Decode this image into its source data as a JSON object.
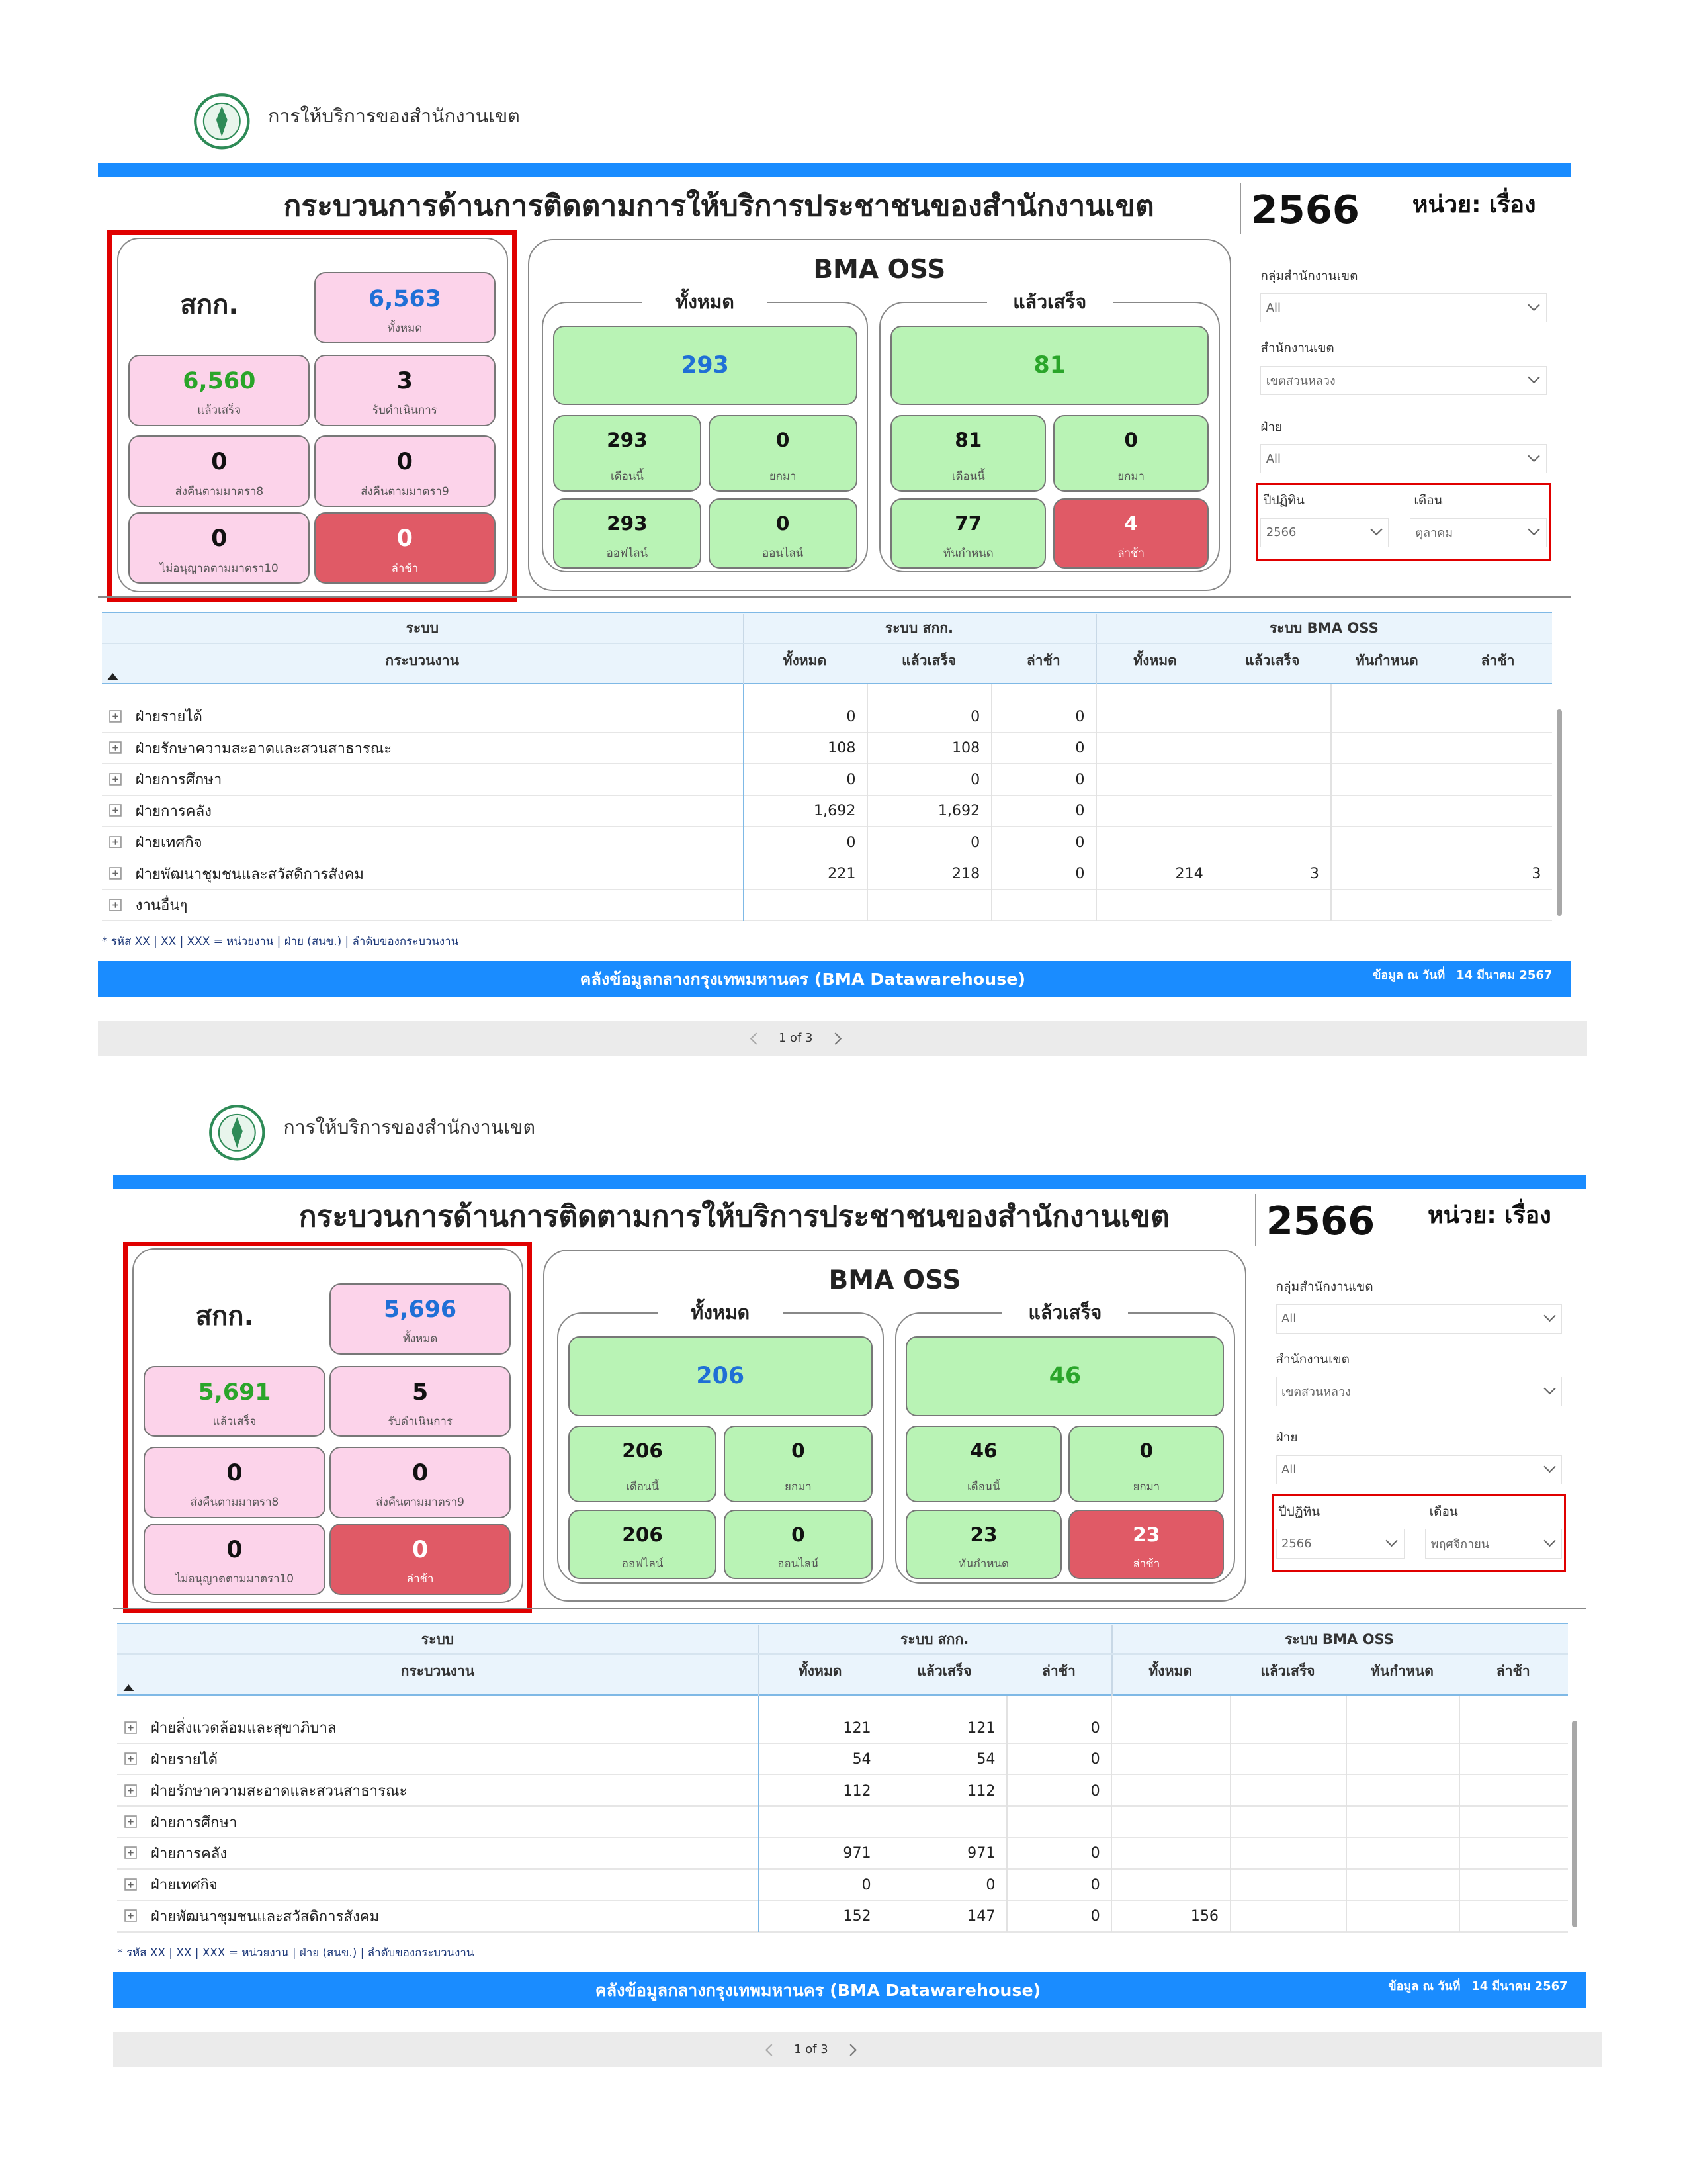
{
  "pages": [
    {
      "header": {
        "title": "การให้บริการของสำนักงานเขต"
      },
      "report": {
        "title": "กระบวนการด้านการติดตามการให้บริการประชาชนของสำนักงานเขต",
        "year": "2566",
        "unit": "หน่วย: เรื่อง"
      },
      "sakk": {
        "title": "สกก.",
        "cards": [
          {
            "value": "6,563",
            "label": "ทั้งหมด"
          },
          {
            "value": "6,560",
            "label": "แล้วเสร็จ"
          },
          {
            "value": "3",
            "label": "รับดำเนินการ"
          },
          {
            "value": "0",
            "label": "ส่งคืนตามมาตรา8"
          },
          {
            "value": "0",
            "label": "ส่งคืนตามมาตรา9"
          },
          {
            "value": "0",
            "label": "ไม่อนุญาตตามมาตรา10"
          },
          {
            "value": "0",
            "label": "ล่าช้า"
          }
        ]
      },
      "oss": {
        "title": "BMA OSS",
        "groups": [
          {
            "title": "ทั้งหมด",
            "main": "293",
            "cards": [
              {
                "value": "293",
                "label": "เดือนนี้"
              },
              {
                "value": "0",
                "label": "ยกมา"
              },
              {
                "value": "293",
                "label": "ออฟไลน์"
              },
              {
                "value": "0",
                "label": "ออนไลน์"
              }
            ]
          },
          {
            "title": "แล้วเสร็จ",
            "main": "81",
            "cards": [
              {
                "value": "81",
                "label": "เดือนนี้"
              },
              {
                "value": "0",
                "label": "ยกมา"
              },
              {
                "value": "77",
                "label": "ทันกำหนด"
              },
              {
                "value": "4",
                "label": "ล่าช้า"
              }
            ]
          }
        ]
      },
      "filters": [
        {
          "label": "กลุ่มสำนักงานเขต",
          "value": "All"
        },
        {
          "label": "สำนักงานเขต",
          "value": "เขตสวนหลวง"
        },
        {
          "label": "ฝ่าย",
          "value": "All"
        },
        {
          "label": "ปีปฏิทิน",
          "value": "2566"
        },
        {
          "label": "เดือน",
          "value": "ตุลาคม"
        }
      ],
      "table": {
        "header_groups": [
          "ระบบ",
          "ระบบ สกก.",
          "ระบบ BMA OSS"
        ],
        "columns": [
          "กระบวนงาน",
          "ทั้งหมด",
          "แล้วเสร็จ",
          "ล่าช้า",
          "ทั้งหมด",
          "แล้วเสร็จ",
          "ทันกำหนด",
          "ล่าช้า"
        ],
        "rows": [
          [
            "ฝ่ายรายได้",
            "0",
            "0",
            "0",
            null,
            null,
            null,
            null
          ],
          [
            "ฝ่ายรักษาความสะอาดและสวนสาธารณะ",
            "108",
            "108",
            "0",
            null,
            null,
            null,
            null
          ],
          [
            "ฝ่ายการศึกษา",
            "0",
            "0",
            "0",
            null,
            null,
            null,
            null
          ],
          [
            "ฝ่ายการคลัง",
            "1,692",
            "1,692",
            "0",
            null,
            null,
            null,
            null
          ],
          [
            "ฝ่ายเทศกิจ",
            "0",
            "0",
            "0",
            null,
            null,
            null,
            null
          ],
          [
            "ฝ่ายพัฒนาชุมชนและสวัสดิการสังคม",
            "221",
            "218",
            "0",
            "214",
            "3",
            null,
            "3"
          ],
          [
            "งานอื่นๆ",
            null,
            null,
            null,
            null,
            null,
            null,
            null
          ]
        ]
      },
      "note": "* รหัส XX | XX | XXX = หน่วยงาน | ฝ่าย (สนข.) | ลำดับของกระบวนงาน",
      "footer": {
        "title": "คลังข้อมูลกลางกรุงเทพมหานคร (BMA Datawarehouse)",
        "date_label": "ข้อมูล ณ วันที่",
        "date": "14 มีนาคม 2567"
      },
      "pager": "1 of 3"
    },
    {
      "header": {
        "title": "การให้บริการของสำนักงานเขต"
      },
      "report": {
        "title": "กระบวนการด้านการติดตามการให้บริการประชาชนของสำนักงานเขต",
        "year": "2566",
        "unit": "หน่วย: เรื่อง"
      },
      "sakk": {
        "title": "สกก.",
        "cards": [
          {
            "value": "5,696",
            "label": "ทั้งหมด"
          },
          {
            "value": "5,691",
            "label": "แล้วเสร็จ"
          },
          {
            "value": "5",
            "label": "รับดำเนินการ"
          },
          {
            "value": "0",
            "label": "ส่งคืนตามมาตรา8"
          },
          {
            "value": "0",
            "label": "ส่งคืนตามมาตรา9"
          },
          {
            "value": "0",
            "label": "ไม่อนุญาตตามมาตรา10"
          },
          {
            "value": "0",
            "label": "ล่าช้า"
          }
        ]
      },
      "oss": {
        "title": "BMA OSS",
        "groups": [
          {
            "title": "ทั้งหมด",
            "main": "206",
            "cards": [
              {
                "value": "206",
                "label": "เดือนนี้"
              },
              {
                "value": "0",
                "label": "ยกมา"
              },
              {
                "value": "206",
                "label": "ออฟไลน์"
              },
              {
                "value": "0",
                "label": "ออนไลน์"
              }
            ]
          },
          {
            "title": "แล้วเสร็จ",
            "main": "46",
            "cards": [
              {
                "value": "46",
                "label": "เดือนนี้"
              },
              {
                "value": "0",
                "label": "ยกมา"
              },
              {
                "value": "23",
                "label": "ทันกำหนด"
              },
              {
                "value": "23",
                "label": "ล่าช้า"
              }
            ]
          }
        ]
      },
      "filters": [
        {
          "label": "กลุ่มสำนักงานเขต",
          "value": "All"
        },
        {
          "label": "สำนักงานเขต",
          "value": "เขตสวนหลวง"
        },
        {
          "label": "ฝ่าย",
          "value": "All"
        },
        {
          "label": "ปีปฏิทิน",
          "value": "2566"
        },
        {
          "label": "เดือน",
          "value": "พฤศจิกายน"
        }
      ],
      "table": {
        "header_groups": [
          "ระบบ",
          "ระบบ สกก.",
          "ระบบ BMA OSS"
        ],
        "columns": [
          "กระบวนงาน",
          "ทั้งหมด",
          "แล้วเสร็จ",
          "ล่าช้า",
          "ทั้งหมด",
          "แล้วเสร็จ",
          "ทันกำหนด",
          "ล่าช้า"
        ],
        "rows": [
          [
            "ฝ่ายสิ่งแวดล้อมและสุขาภิบาล",
            "121",
            "121",
            "0",
            null,
            null,
            null,
            null
          ],
          [
            "ฝ่ายรายได้",
            "54",
            "54",
            "0",
            null,
            null,
            null,
            null
          ],
          [
            "ฝ่ายรักษาความสะอาดและสวนสาธารณะ",
            "112",
            "112",
            "0",
            null,
            null,
            null,
            null
          ],
          [
            "ฝ่ายการศึกษา",
            null,
            null,
            null,
            null,
            null,
            null,
            null
          ],
          [
            "ฝ่ายการคลัง",
            "971",
            "971",
            "0",
            null,
            null,
            null,
            null
          ],
          [
            "ฝ่ายเทศกิจ",
            "0",
            "0",
            "0",
            null,
            null,
            null,
            null
          ],
          [
            "ฝ่ายพัฒนาชุมชนและสวัสดิการสังคม",
            "152",
            "147",
            "0",
            "156",
            null,
            null,
            null
          ]
        ]
      },
      "note": "* รหัส XX | XX | XXX = หน่วยงาน | ฝ่าย (สนข.) | ลำดับของกระบวนงาน",
      "footer": {
        "title": "คลังข้อมูลกลางกรุงเทพมหานคร (BMA Datawarehouse)",
        "date_label": "ข้อมูล ณ วันที่",
        "date": "14 มีนาคม 2567"
      },
      "pager": "1 of 3"
    }
  ]
}
